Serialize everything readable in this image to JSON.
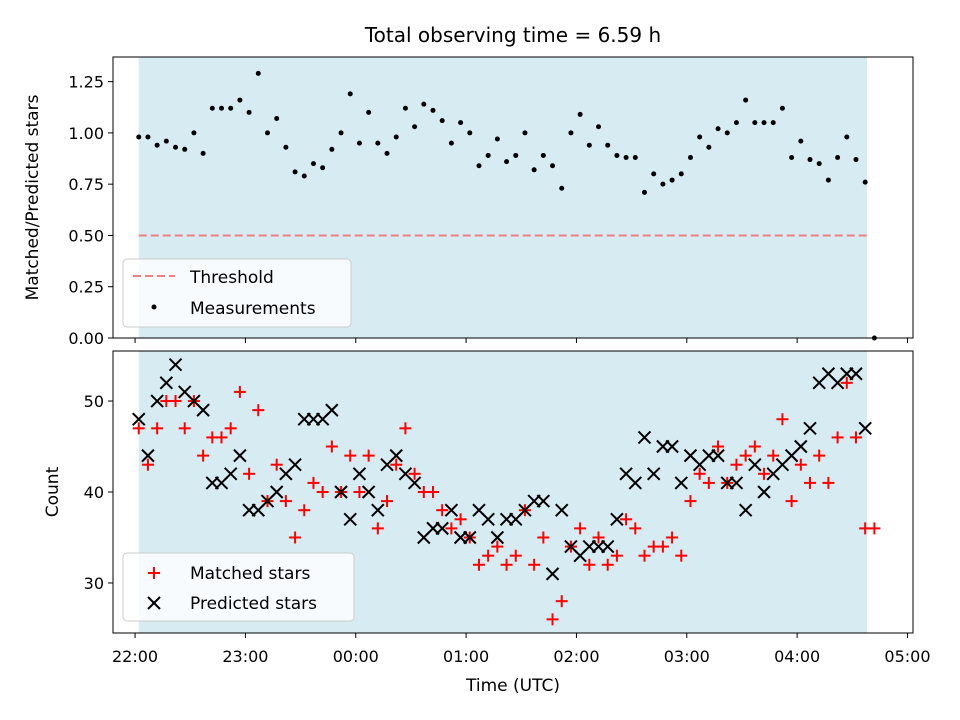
{
  "chart_data": [
    {
      "type": "scatter",
      "title": "Total observing time = 6.59 h",
      "ylabel": "Matched/Predicted stars",
      "ylim": [
        0,
        1.37
      ],
      "yticks": [
        0,
        0.25,
        0.5,
        0.75,
        1.0,
        1.25
      ],
      "ytick_labels": [
        "0.00",
        "0.25",
        "0.50",
        "0.75",
        "1.00",
        "1.25"
      ],
      "shaded_span": [
        "22:02",
        "04:38"
      ],
      "legend_position": "lower-left",
      "threshold": {
        "name": "Threshold",
        "value": 0.5,
        "color": "#f08080",
        "style": "dashed"
      },
      "series": [
        {
          "name": "Measurements",
          "color": "#000000",
          "points": [
            [
              "22:02",
              0.98
            ],
            [
              "22:07",
              0.98
            ],
            [
              "22:12",
              0.94
            ],
            [
              "22:17",
              0.96
            ],
            [
              "22:22",
              0.93
            ],
            [
              "22:27",
              0.92
            ],
            [
              "22:32",
              1.0
            ],
            [
              "22:37",
              0.9
            ],
            [
              "22:42",
              1.12
            ],
            [
              "22:47",
              1.12
            ],
            [
              "22:52",
              1.12
            ],
            [
              "22:57",
              1.16
            ],
            [
              "23:02",
              1.1
            ],
            [
              "23:07",
              1.29
            ],
            [
              "23:12",
              1.0
            ],
            [
              "23:17",
              1.07
            ],
            [
              "23:22",
              0.93
            ],
            [
              "23:27",
              0.81
            ],
            [
              "23:32",
              0.79
            ],
            [
              "23:37",
              0.85
            ],
            [
              "23:42",
              0.83
            ],
            [
              "23:47",
              0.92
            ],
            [
              "23:52",
              1.0
            ],
            [
              "23:57",
              1.19
            ],
            [
              "00:02",
              0.95
            ],
            [
              "00:07",
              1.1
            ],
            [
              "00:12",
              0.95
            ],
            [
              "00:17",
              0.9
            ],
            [
              "00:22",
              0.98
            ],
            [
              "00:27",
              1.12
            ],
            [
              "00:32",
              1.03
            ],
            [
              "00:37",
              1.14
            ],
            [
              "00:42",
              1.11
            ],
            [
              "00:47",
              1.06
            ],
            [
              "00:52",
              0.95
            ],
            [
              "00:57",
              1.05
            ],
            [
              "01:02",
              1.0
            ],
            [
              "01:07",
              0.84
            ],
            [
              "01:12",
              0.89
            ],
            [
              "01:17",
              0.97
            ],
            [
              "01:22",
              0.86
            ],
            [
              "01:27",
              0.89
            ],
            [
              "01:32",
              1.0
            ],
            [
              "01:37",
              0.82
            ],
            [
              "01:42",
              0.89
            ],
            [
              "01:47",
              0.84
            ],
            [
              "01:52",
              0.73
            ],
            [
              "01:57",
              1.0
            ],
            [
              "02:02",
              1.09
            ],
            [
              "02:07",
              0.94
            ],
            [
              "02:12",
              1.03
            ],
            [
              "02:17",
              0.94
            ],
            [
              "02:22",
              0.89
            ],
            [
              "02:27",
              0.88
            ],
            [
              "02:32",
              0.88
            ],
            [
              "02:37",
              0.71
            ],
            [
              "02:42",
              0.8
            ],
            [
              "02:47",
              0.75
            ],
            [
              "02:52",
              0.77
            ],
            [
              "02:57",
              0.8
            ],
            [
              "03:02",
              0.88
            ],
            [
              "03:07",
              0.98
            ],
            [
              "03:12",
              0.93
            ],
            [
              "03:17",
              1.02
            ],
            [
              "03:22",
              1.0
            ],
            [
              "03:27",
              1.05
            ],
            [
              "03:32",
              1.16
            ],
            [
              "03:37",
              1.05
            ],
            [
              "03:42",
              1.05
            ],
            [
              "03:47",
              1.05
            ],
            [
              "03:52",
              1.12
            ],
            [
              "03:57",
              0.88
            ],
            [
              "04:02",
              0.96
            ],
            [
              "04:07",
              0.87
            ],
            [
              "04:12",
              0.85
            ],
            [
              "04:17",
              0.77
            ],
            [
              "04:22",
              0.88
            ],
            [
              "04:27",
              0.98
            ],
            [
              "04:32",
              0.87
            ],
            [
              "04:37",
              0.76
            ],
            [
              "04:42",
              0.0
            ]
          ]
        }
      ]
    },
    {
      "type": "scatter",
      "xlabel": "Time (UTC)",
      "ylabel": "Count",
      "ylim": [
        24.5,
        55.5
      ],
      "yticks": [
        30,
        40,
        50
      ],
      "ytick_labels": [
        "30",
        "40",
        "50"
      ],
      "xlim": [
        "21:48",
        "05:03"
      ],
      "xticks": [
        "22:00",
        "23:00",
        "00:00",
        "01:00",
        "02:00",
        "03:00",
        "04:00",
        "05:00"
      ],
      "shaded_span": [
        "22:02",
        "04:38"
      ],
      "legend_position": "lower-left",
      "series": [
        {
          "name": "Matched stars",
          "marker": "plus",
          "color": "#ff0000",
          "points": [
            [
              "22:02",
              47
            ],
            [
              "22:07",
              43
            ],
            [
              "22:12",
              47
            ],
            [
              "22:17",
              50
            ],
            [
              "22:22",
              50
            ],
            [
              "22:27",
              47
            ],
            [
              "22:32",
              50
            ],
            [
              "22:37",
              44
            ],
            [
              "22:42",
              46
            ],
            [
              "22:47",
              46
            ],
            [
              "22:52",
              47
            ],
            [
              "22:57",
              51
            ],
            [
              "23:02",
              42
            ],
            [
              "23:07",
              49
            ],
            [
              "23:12",
              39
            ],
            [
              "23:17",
              43
            ],
            [
              "23:22",
              39
            ],
            [
              "23:27",
              35
            ],
            [
              "23:32",
              38
            ],
            [
              "23:37",
              41
            ],
            [
              "23:42",
              40
            ],
            [
              "23:47",
              45
            ],
            [
              "23:52",
              40
            ],
            [
              "23:57",
              44
            ],
            [
              "00:02",
              40
            ],
            [
              "00:07",
              44
            ],
            [
              "00:12",
              36
            ],
            [
              "00:17",
              39
            ],
            [
              "00:22",
              43
            ],
            [
              "00:27",
              47
            ],
            [
              "00:32",
              42
            ],
            [
              "00:37",
              40
            ],
            [
              "00:42",
              40
            ],
            [
              "00:47",
              38
            ],
            [
              "00:52",
              36
            ],
            [
              "00:57",
              37
            ],
            [
              "01:02",
              35
            ],
            [
              "01:07",
              32
            ],
            [
              "01:12",
              33
            ],
            [
              "01:17",
              34
            ],
            [
              "01:22",
              32
            ],
            [
              "01:27",
              33
            ],
            [
              "01:32",
              38
            ],
            [
              "01:37",
              32
            ],
            [
              "01:42",
              35
            ],
            [
              "01:47",
              26
            ],
            [
              "01:52",
              28
            ],
            [
              "01:57",
              34
            ],
            [
              "02:02",
              36
            ],
            [
              "02:07",
              32
            ],
            [
              "02:12",
              35
            ],
            [
              "02:17",
              32
            ],
            [
              "02:22",
              33
            ],
            [
              "02:27",
              37
            ],
            [
              "02:32",
              36
            ],
            [
              "02:37",
              33
            ],
            [
              "02:42",
              34
            ],
            [
              "02:47",
              34
            ],
            [
              "02:52",
              35
            ],
            [
              "02:57",
              33
            ],
            [
              "03:02",
              39
            ],
            [
              "03:07",
              42
            ],
            [
              "03:12",
              41
            ],
            [
              "03:17",
              45
            ],
            [
              "03:22",
              41
            ],
            [
              "03:27",
              43
            ],
            [
              "03:32",
              44
            ],
            [
              "03:37",
              45
            ],
            [
              "03:42",
              42
            ],
            [
              "03:47",
              44
            ],
            [
              "03:52",
              48
            ],
            [
              "03:57",
              39
            ],
            [
              "04:02",
              43
            ],
            [
              "04:07",
              41
            ],
            [
              "04:12",
              44
            ],
            [
              "04:17",
              41
            ],
            [
              "04:22",
              46
            ],
            [
              "04:27",
              52
            ],
            [
              "04:32",
              46
            ],
            [
              "04:37",
              36
            ],
            [
              "04:42",
              36
            ]
          ]
        },
        {
          "name": "Predicted stars",
          "marker": "x",
          "color": "#000000",
          "points": [
            [
              "22:02",
              48
            ],
            [
              "22:07",
              44
            ],
            [
              "22:12",
              50
            ],
            [
              "22:17",
              52
            ],
            [
              "22:22",
              54
            ],
            [
              "22:27",
              51
            ],
            [
              "22:32",
              50
            ],
            [
              "22:37",
              49
            ],
            [
              "22:42",
              41
            ],
            [
              "22:47",
              41
            ],
            [
              "22:52",
              42
            ],
            [
              "22:57",
              44
            ],
            [
              "23:02",
              38
            ],
            [
              "23:07",
              38
            ],
            [
              "23:12",
              39
            ],
            [
              "23:17",
              40
            ],
            [
              "23:22",
              42
            ],
            [
              "23:27",
              43
            ],
            [
              "23:32",
              48
            ],
            [
              "23:37",
              48
            ],
            [
              "23:42",
              48
            ],
            [
              "23:47",
              49
            ],
            [
              "23:52",
              40
            ],
            [
              "23:57",
              37
            ],
            [
              "00:02",
              42
            ],
            [
              "00:07",
              40
            ],
            [
              "00:12",
              38
            ],
            [
              "00:17",
              43
            ],
            [
              "00:22",
              44
            ],
            [
              "00:27",
              42
            ],
            [
              "00:32",
              41
            ],
            [
              "00:37",
              35
            ],
            [
              "00:42",
              36
            ],
            [
              "00:47",
              36
            ],
            [
              "00:52",
              38
            ],
            [
              "00:57",
              35
            ],
            [
              "01:02",
              35
            ],
            [
              "01:07",
              38
            ],
            [
              "01:12",
              37
            ],
            [
              "01:17",
              35
            ],
            [
              "01:22",
              37
            ],
            [
              "01:27",
              37
            ],
            [
              "01:32",
              38
            ],
            [
              "01:37",
              39
            ],
            [
              "01:42",
              39
            ],
            [
              "01:47",
              31
            ],
            [
              "01:52",
              38
            ],
            [
              "01:57",
              34
            ],
            [
              "02:02",
              33
            ],
            [
              "02:07",
              34
            ],
            [
              "02:12",
              34
            ],
            [
              "02:17",
              34
            ],
            [
              "02:22",
              37
            ],
            [
              "02:27",
              42
            ],
            [
              "02:32",
              41
            ],
            [
              "02:37",
              46
            ],
            [
              "02:42",
              42
            ],
            [
              "02:47",
              45
            ],
            [
              "02:52",
              45
            ],
            [
              "02:57",
              41
            ],
            [
              "03:02",
              44
            ],
            [
              "03:07",
              43
            ],
            [
              "03:12",
              44
            ],
            [
              "03:17",
              44
            ],
            [
              "03:22",
              41
            ],
            [
              "03:27",
              41
            ],
            [
              "03:32",
              38
            ],
            [
              "03:37",
              43
            ],
            [
              "03:42",
              40
            ],
            [
              "03:47",
              42
            ],
            [
              "03:52",
              43
            ],
            [
              "03:57",
              44
            ],
            [
              "04:02",
              45
            ],
            [
              "04:07",
              47
            ],
            [
              "04:12",
              52
            ],
            [
              "04:17",
              53
            ],
            [
              "04:22",
              52
            ],
            [
              "04:27",
              53
            ],
            [
              "04:32",
              53
            ],
            [
              "04:37",
              47
            ]
          ]
        }
      ]
    }
  ]
}
